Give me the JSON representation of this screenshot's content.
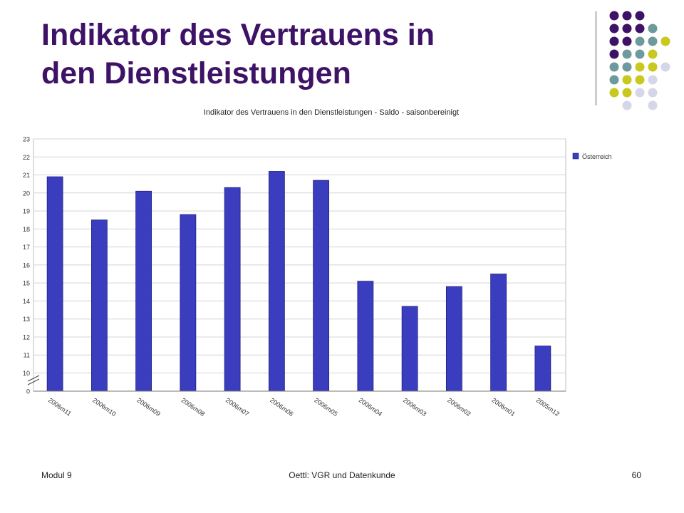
{
  "slide": {
    "title_lines": [
      "Indikator des Vertrauens in",
      "den Dienstleistungen"
    ]
  },
  "decoration": {
    "dot_rows": [
      [
        "purple",
        "purple",
        "purple",
        "none",
        "none"
      ],
      [
        "purple",
        "purple",
        "purple",
        "teal",
        "none"
      ],
      [
        "purple",
        "purple",
        "teal",
        "teal",
        "yellow"
      ],
      [
        "purple",
        "teal",
        "teal",
        "yellow",
        "none"
      ],
      [
        "teal",
        "teal",
        "yellow",
        "yellow",
        "lavender"
      ],
      [
        "teal",
        "yellow",
        "yellow",
        "lavender",
        "none"
      ],
      [
        "yellow",
        "yellow",
        "lavender",
        "lavender",
        "none"
      ],
      [
        "none",
        "lavender",
        "none",
        "lavender",
        "none"
      ]
    ],
    "colors": {
      "purple": "#3e1266",
      "teal": "#6d9a9c",
      "yellow": "#c8c81e",
      "lavender": "#d6d6ea"
    }
  },
  "footer": {
    "left": "Modul 9",
    "center": "Oettl: VGR und Datenkunde",
    "right": "60"
  },
  "chart_data": {
    "type": "bar",
    "title": "Indikator des Vertrauens in den Dienstleistungen - Saldo - saisonbereinigt",
    "categories": [
      "2006m11",
      "2006m10",
      "2006m09",
      "2006m08",
      "2006m07",
      "2006m06",
      "2006m05",
      "2006m04",
      "2006m03",
      "2006m02",
      "2006m01",
      "2005m12"
    ],
    "series": [
      {
        "name": "Österreich",
        "values": [
          20.9,
          18.5,
          20.1,
          18.8,
          20.3,
          21.2,
          20.7,
          15.1,
          13.7,
          14.8,
          15.5,
          11.5
        ],
        "color": "#3b3dbf"
      }
    ],
    "yticks": [
      0,
      10,
      11,
      12,
      13,
      14,
      15,
      16,
      17,
      18,
      19,
      20,
      21,
      22,
      23
    ],
    "ylim": [
      9,
      23
    ],
    "axis_break": true,
    "grid": true,
    "legend": "top-right"
  }
}
